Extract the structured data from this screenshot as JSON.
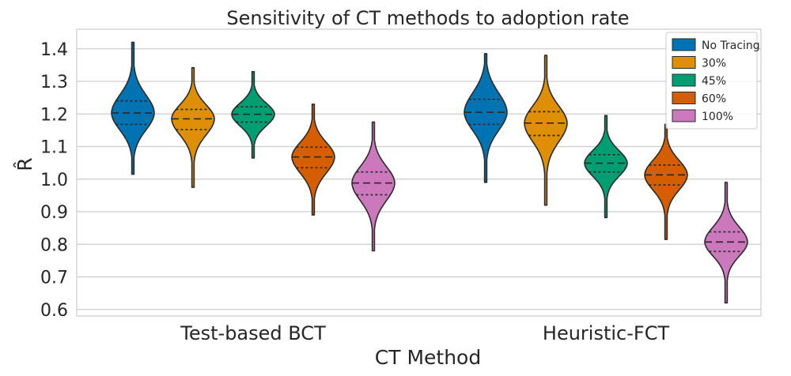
{
  "chart_data": {
    "type": "violin",
    "title": "Sensitivity of CT methods to adoption rate",
    "xlabel": "CT Method",
    "ylabel": "R̂",
    "ylim": [
      0.58,
      1.46
    ],
    "yticks": [
      "0.6",
      "0.7",
      "0.8",
      "0.9",
      "1.0",
      "1.1",
      "1.2",
      "1.3",
      "1.4"
    ],
    "categories": [
      "Test-based BCT",
      "Heuristic-FCT"
    ],
    "grid": true,
    "legend_position": "top-right",
    "inner": "quartile",
    "series": [
      {
        "name": "No Tracing",
        "color": "#0173b2",
        "violins": [
          {
            "min": 1.015,
            "q1": 1.168,
            "median": 1.203,
            "q3": 1.24,
            "max": 1.42
          },
          {
            "min": 0.99,
            "q1": 1.168,
            "median": 1.205,
            "q3": 1.245,
            "max": 1.385
          }
        ]
      },
      {
        "name": "30%",
        "color": "#de8f05",
        "violins": [
          {
            "min": 0.975,
            "q1": 1.152,
            "median": 1.185,
            "q3": 1.214,
            "max": 1.342
          },
          {
            "min": 0.92,
            "q1": 1.134,
            "median": 1.172,
            "q3": 1.207,
            "max": 1.38
          }
        ]
      },
      {
        "name": "45%",
        "color": "#029e73",
        "violins": [
          {
            "min": 1.065,
            "q1": 1.175,
            "median": 1.199,
            "q3": 1.222,
            "max": 1.33
          },
          {
            "min": 0.882,
            "q1": 1.022,
            "median": 1.049,
            "q3": 1.075,
            "max": 1.195
          }
        ]
      },
      {
        "name": "60%",
        "color": "#d55e00",
        "violins": [
          {
            "min": 0.89,
            "q1": 1.035,
            "median": 1.068,
            "q3": 1.098,
            "max": 1.23
          },
          {
            "min": 0.815,
            "q1": 0.982,
            "median": 1.013,
            "q3": 1.043,
            "max": 1.168
          }
        ]
      },
      {
        "name": "100%",
        "color": "#cc78bc",
        "violins": [
          {
            "min": 0.78,
            "q1": 0.952,
            "median": 0.988,
            "q3": 1.022,
            "max": 1.175
          },
          {
            "min": 0.62,
            "q1": 0.778,
            "median": 0.807,
            "q3": 0.838,
            "max": 0.99
          }
        ]
      }
    ]
  }
}
